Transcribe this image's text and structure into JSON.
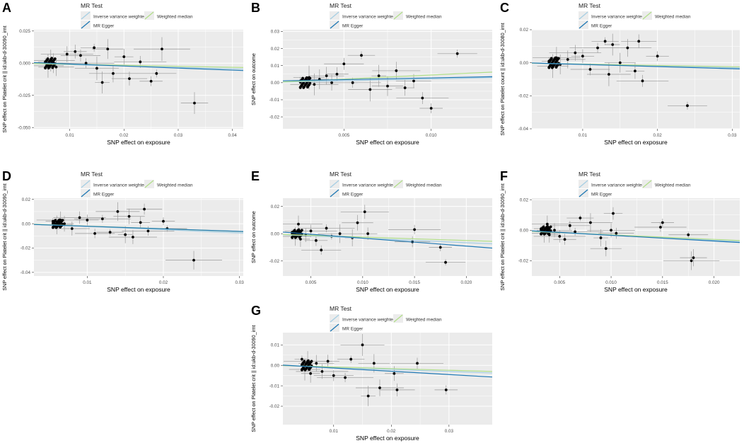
{
  "figure": {
    "legend": {
      "title": "MR Test",
      "items": [
        "Inverse variance weighted",
        "Weighted median",
        "MR Egger"
      ]
    },
    "colors": {
      "panel_bg": "#ebebeb",
      "grid": "#ffffff",
      "point": "#000000",
      "errorbar": "#9a9a9a",
      "ivw": "#a6cee3",
      "weighted_median": "#b2df8a",
      "egger": "#1f78b4"
    }
  },
  "chart_data": [
    {
      "panel_label": "A",
      "type": "scatter",
      "xlabel": "SNP effect on exposure",
      "ylabel": "SNP effect on Platelet crit || id:ukb-d-30090_irnt",
      "xlim": [
        0.0034,
        0.042
      ],
      "ylim": [
        -0.051,
        0.026
      ],
      "xticks": [
        0.01,
        0.02,
        0.03,
        0.04
      ],
      "xtick_labels": [
        "0.01",
        "0.02",
        "0.03",
        "0.04"
      ],
      "yticks": [
        -0.05,
        -0.025,
        0.0,
        0.025
      ],
      "ytick_labels": [
        "-0.050",
        "-0.025",
        "0.000",
        "0.025"
      ],
      "lines": [
        {
          "name": "Inverse variance weighted",
          "slope": -0.11,
          "intercept": 0
        },
        {
          "name": "Weighted median",
          "slope": -0.08,
          "intercept": 0
        },
        {
          "name": "MR Egger",
          "slope": -0.16,
          "intercept": 0.001
        }
      ],
      "points": [
        [
          0.0055,
          0.001
        ],
        [
          0.006,
          -0.002
        ],
        [
          0.0065,
          0.002
        ],
        [
          0.007,
          0.0
        ],
        [
          0.0075,
          -0.003
        ],
        [
          0.0095,
          0.007
        ],
        [
          0.011,
          0.009
        ],
        [
          0.012,
          0.006
        ],
        [
          0.013,
          0.0
        ],
        [
          0.0145,
          0.012
        ],
        [
          0.015,
          -0.004
        ],
        [
          0.016,
          -0.015
        ],
        [
          0.017,
          0.011
        ],
        [
          0.018,
          -0.008
        ],
        [
          0.02,
          0.005
        ],
        [
          0.021,
          -0.012
        ],
        [
          0.023,
          0.001
        ],
        [
          0.025,
          -0.014
        ],
        [
          0.026,
          -0.008
        ],
        [
          0.027,
          0.011
        ],
        [
          0.033,
          -0.031
        ]
      ]
    },
    {
      "panel_label": "B",
      "type": "scatter",
      "xlabel": "SNP effect on exposure",
      "ylabel": "SNP effect on outcome",
      "xlim": [
        0.0015,
        0.0135
      ],
      "ylim": [
        -0.027,
        0.031
      ],
      "xticks": [
        0.005,
        0.01
      ],
      "xtick_labels": [
        "0.005",
        "0.010"
      ],
      "yticks": [
        -0.02,
        -0.01,
        0.0,
        0.01,
        0.02,
        0.03
      ],
      "ytick_labels": [
        "-0.02",
        "-0.01",
        "0.00",
        "0.01",
        "0.02",
        "0.03"
      ],
      "lines": [
        {
          "name": "Inverse variance weighted",
          "slope": 0.22,
          "intercept": 0
        },
        {
          "name": "Weighted median",
          "slope": 0.48,
          "intercept": -0.0003
        },
        {
          "name": "MR Egger",
          "slope": 0.2,
          "intercept": 0.0008
        }
      ],
      "points": [
        [
          0.0025,
          0.001
        ],
        [
          0.003,
          0.003
        ],
        [
          0.0033,
          -0.001
        ],
        [
          0.0036,
          0.002
        ],
        [
          0.004,
          0.004
        ],
        [
          0.0043,
          0.0
        ],
        [
          0.0046,
          0.005
        ],
        [
          0.005,
          0.011
        ],
        [
          0.0055,
          0.0
        ],
        [
          0.006,
          0.016
        ],
        [
          0.0065,
          -0.004
        ],
        [
          0.007,
          0.004
        ],
        [
          0.0075,
          -0.002
        ],
        [
          0.008,
          0.007
        ],
        [
          0.0085,
          -0.003
        ],
        [
          0.009,
          0.001
        ],
        [
          0.0095,
          -0.009
        ],
        [
          0.01,
          -0.015
        ],
        [
          0.0115,
          0.017
        ]
      ]
    },
    {
      "panel_label": "C",
      "type": "scatter",
      "xlabel": "SNP effect on exposure",
      "ylabel": "SNP effect on Platelet count || id:ukb-d-30080_irnt",
      "xlim": [
        0.0032,
        0.031
      ],
      "ylim": [
        -0.04,
        0.02
      ],
      "xticks": [
        0.01,
        0.02,
        0.03
      ],
      "xtick_labels": [
        "0.01",
        "0.02",
        "0.03"
      ],
      "yticks": [
        -0.04,
        -0.02,
        0.0,
        0.02
      ],
      "ytick_labels": [
        "-0.04",
        "-0.02",
        "0.00",
        "0.02"
      ],
      "lines": [
        {
          "name": "Inverse variance weighted",
          "slope": -0.1,
          "intercept": 0
        },
        {
          "name": "Weighted median",
          "slope": -0.08,
          "intercept": 0
        },
        {
          "name": "MR Egger",
          "slope": -0.13,
          "intercept": 0.0003
        }
      ],
      "points": [
        [
          0.0055,
          0.001
        ],
        [
          0.006,
          -0.002
        ],
        [
          0.0065,
          0.003
        ],
        [
          0.007,
          -0.001
        ],
        [
          0.008,
          0.002
        ],
        [
          0.009,
          0.006
        ],
        [
          0.01,
          0.004
        ],
        [
          0.011,
          -0.004
        ],
        [
          0.012,
          0.009
        ],
        [
          0.013,
          0.013
        ],
        [
          0.0135,
          -0.007
        ],
        [
          0.014,
          0.011
        ],
        [
          0.015,
          0.0
        ],
        [
          0.016,
          0.009
        ],
        [
          0.017,
          -0.005
        ],
        [
          0.0175,
          0.013
        ],
        [
          0.018,
          -0.011
        ],
        [
          0.02,
          0.004
        ],
        [
          0.024,
          -0.026
        ]
      ]
    },
    {
      "panel_label": "D",
      "type": "scatter",
      "xlabel": "SNP effect on exposure",
      "ylabel": "SNP effect on Platelet crit || id:ukb-d-30090_irnt",
      "xlim": [
        0.003,
        0.0305
      ],
      "ylim": [
        -0.043,
        0.021
      ],
      "xticks": [
        0.01,
        0.02,
        0.03
      ],
      "xtick_labels": [
        "0.01",
        "0.02",
        "0.03"
      ],
      "yticks": [
        -0.04,
        -0.02,
        0.0,
        0.02
      ],
      "ytick_labels": [
        "-0.04",
        "-0.02",
        "0.00",
        "0.02"
      ],
      "lines": [
        {
          "name": "Inverse variance weighted",
          "slope": -0.27,
          "intercept": 0.0005
        },
        {
          "name": "Weighted median",
          "slope": -0.22,
          "intercept": 0.0002
        },
        {
          "name": "MR Egger",
          "slope": -0.21,
          "intercept": 0.0
        }
      ],
      "points": [
        [
          0.0055,
          0.002
        ],
        [
          0.006,
          -0.001
        ],
        [
          0.0065,
          0.003
        ],
        [
          0.007,
          0.0
        ],
        [
          0.008,
          -0.004
        ],
        [
          0.009,
          0.005
        ],
        [
          0.01,
          0.003
        ],
        [
          0.011,
          -0.008
        ],
        [
          0.012,
          0.004
        ],
        [
          0.013,
          -0.007
        ],
        [
          0.014,
          0.01
        ],
        [
          0.015,
          -0.009
        ],
        [
          0.0155,
          0.006
        ],
        [
          0.016,
          -0.011
        ],
        [
          0.017,
          0.001
        ],
        [
          0.0175,
          0.012
        ],
        [
          0.018,
          -0.006
        ],
        [
          0.02,
          0.002
        ],
        [
          0.0205,
          -0.004
        ],
        [
          0.024,
          -0.03
        ]
      ]
    },
    {
      "panel_label": "E",
      "type": "scatter",
      "xlabel": "SNP effect on exposure",
      "ylabel": "SNP effect on outcome",
      "xlim": [
        0.0023,
        0.0225
      ],
      "ylim": [
        -0.031,
        0.026
      ],
      "xticks": [
        0.005,
        0.01,
        0.015,
        0.02
      ],
      "xtick_labels": [
        "0.005",
        "0.010",
        "0.015",
        "0.020"
      ],
      "yticks": [
        -0.02,
        0.0,
        0.02
      ],
      "ytick_labels": [
        "-0.02",
        "0.00",
        "0.02"
      ],
      "lines": [
        {
          "name": "Inverse variance weighted",
          "slope": -0.33,
          "intercept": 0.0
        },
        {
          "name": "Weighted median",
          "slope": -0.25,
          "intercept": 0.0
        },
        {
          "name": "MR Egger",
          "slope": -0.58,
          "intercept": 0.0025
        }
      ],
      "points": [
        [
          0.0032,
          0.001
        ],
        [
          0.0035,
          -0.002
        ],
        [
          0.0038,
          0.007
        ],
        [
          0.004,
          -0.004
        ],
        [
          0.0045,
          -0.001
        ],
        [
          0.005,
          0.002
        ],
        [
          0.0055,
          -0.005
        ],
        [
          0.006,
          -0.012
        ],
        [
          0.0065,
          0.004
        ],
        [
          0.007,
          -0.002
        ],
        [
          0.0078,
          0.0
        ],
        [
          0.009,
          -0.003
        ],
        [
          0.0095,
          0.008
        ],
        [
          0.0102,
          0.016
        ],
        [
          0.0105,
          0.0
        ],
        [
          0.0148,
          -0.006
        ],
        [
          0.015,
          0.003
        ],
        [
          0.0175,
          -0.01
        ],
        [
          0.018,
          -0.021
        ]
      ]
    },
    {
      "panel_label": "F",
      "type": "scatter",
      "xlabel": "SNP effect on exposure",
      "ylabel": "SNP effect on Platelet crit || id:ukb-d-30090_irnt",
      "xlim": [
        0.0023,
        0.0225
      ],
      "ylim": [
        -0.03,
        0.021
      ],
      "xticks": [
        0.005,
        0.01,
        0.015,
        0.02
      ],
      "xtick_labels": [
        "0.005",
        "0.010",
        "0.015",
        "0.020"
      ],
      "yticks": [
        -0.02,
        0.0,
        0.02
      ],
      "ytick_labels": [
        "-0.02",
        "0.00",
        "0.02"
      ],
      "lines": [
        {
          "name": "Inverse variance weighted",
          "slope": -0.33,
          "intercept": 0.0
        },
        {
          "name": "Weighted median",
          "slope": -0.3,
          "intercept": 0.0
        },
        {
          "name": "MR Egger",
          "slope": -0.38,
          "intercept": 0.0005
        }
      ],
      "points": [
        [
          0.0032,
          0.001
        ],
        [
          0.0035,
          -0.002
        ],
        [
          0.0038,
          0.004
        ],
        [
          0.004,
          -0.003
        ],
        [
          0.0045,
          0.0
        ],
        [
          0.005,
          -0.004
        ],
        [
          0.0055,
          -0.006
        ],
        [
          0.006,
          0.003
        ],
        [
          0.0065,
          -0.001
        ],
        [
          0.007,
          0.008
        ],
        [
          0.008,
          0.005
        ],
        [
          0.009,
          -0.005
        ],
        [
          0.0095,
          -0.012
        ],
        [
          0.01,
          0.0
        ],
        [
          0.0102,
          0.011
        ],
        [
          0.0105,
          -0.002
        ],
        [
          0.0148,
          0.002
        ],
        [
          0.015,
          0.005
        ],
        [
          0.0175,
          -0.003
        ],
        [
          0.0178,
          -0.02
        ],
        [
          0.018,
          -0.018
        ]
      ]
    },
    {
      "panel_label": "G",
      "type": "scatter",
      "xlabel": "SNP effect on exposure",
      "ylabel": "SNP effect on Platelet crit || id:ukb-d-30090_irnt",
      "xlim": [
        0.0012,
        0.0375
      ],
      "ylim": [
        -0.029,
        0.016
      ],
      "xticks": [
        0.01,
        0.02,
        0.03
      ],
      "xtick_labels": [
        "0.01",
        "0.02",
        "0.03"
      ],
      "yticks": [
        -0.02,
        -0.01,
        0.0,
        0.01
      ],
      "ytick_labels": [
        "-0.02",
        "-0.01",
        "0.00",
        "0.01"
      ],
      "lines": [
        {
          "name": "Inverse variance weighted",
          "slope": -0.1,
          "intercept": 0.0
        },
        {
          "name": "Weighted median",
          "slope": -0.08,
          "intercept": 0.0
        },
        {
          "name": "MR Egger",
          "slope": -0.16,
          "intercept": 0.0003
        }
      ],
      "points": [
        [
          0.0045,
          0.003
        ],
        [
          0.005,
          -0.002
        ],
        [
          0.0055,
          0.002
        ],
        [
          0.006,
          -0.004
        ],
        [
          0.007,
          0.001
        ],
        [
          0.008,
          -0.003
        ],
        [
          0.009,
          0.002
        ],
        [
          0.01,
          -0.005
        ],
        [
          0.012,
          -0.006
        ],
        [
          0.013,
          0.003
        ],
        [
          0.015,
          0.01
        ],
        [
          0.016,
          -0.015
        ],
        [
          0.017,
          0.001
        ],
        [
          0.018,
          -0.011
        ],
        [
          0.0205,
          -0.004
        ],
        [
          0.021,
          -0.012
        ],
        [
          0.0245,
          0.001
        ],
        [
          0.0295,
          -0.012
        ]
      ]
    }
  ]
}
